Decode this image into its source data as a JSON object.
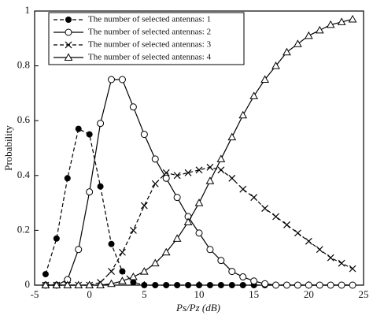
{
  "chart_data": {
    "type": "line",
    "xlabel": "Ps/Pz (dB)",
    "ylabel": "Probability",
    "x": [
      -4,
      -3,
      -2,
      -1,
      0,
      1,
      2,
      3,
      4,
      5,
      6,
      7,
      8,
      9,
      10,
      11,
      12,
      13,
      14,
      15,
      16,
      17,
      18,
      19,
      20,
      21,
      22,
      23,
      24
    ],
    "series": [
      {
        "name": "The number of selected antennas: 1",
        "color": "#000000",
        "marker": "filled-circle",
        "dash": true,
        "values": [
          0.04,
          0.17,
          0.39,
          0.57,
          0.55,
          0.36,
          0.15,
          0.05,
          0.01,
          0,
          0,
          0,
          0,
          0,
          0,
          0,
          0,
          0,
          0,
          0,
          0,
          0,
          0,
          0,
          0,
          0,
          0,
          0,
          0
        ]
      },
      {
        "name": "The number of selected antennas: 2",
        "color": "#000000",
        "marker": "open-circle",
        "dash": false,
        "values": [
          0,
          0,
          0.02,
          0.13,
          0.34,
          0.59,
          0.75,
          0.75,
          0.65,
          0.55,
          0.46,
          0.39,
          0.32,
          0.25,
          0.19,
          0.13,
          0.09,
          0.05,
          0.03,
          0.015,
          0.005,
          0,
          0,
          0,
          0,
          0,
          0,
          0,
          0
        ]
      },
      {
        "name": "The number of selected antennas: 3",
        "color": "#000000",
        "marker": "cross",
        "dash": true,
        "values": [
          0,
          0,
          0,
          0,
          0,
          0.01,
          0.05,
          0.12,
          0.2,
          0.29,
          0.37,
          0.41,
          0.4,
          0.41,
          0.42,
          0.43,
          0.42,
          0.39,
          0.35,
          0.32,
          0.28,
          0.25,
          0.22,
          0.19,
          0.16,
          0.13,
          0.1,
          0.08,
          0.06
        ]
      },
      {
        "name": "The number of selected antennas: 4",
        "color": "#000000",
        "marker": "triangle",
        "dash": false,
        "values": [
          0,
          0,
          0,
          0,
          0,
          0,
          0.005,
          0.015,
          0.03,
          0.05,
          0.08,
          0.12,
          0.17,
          0.23,
          0.3,
          0.38,
          0.46,
          0.54,
          0.62,
          0.69,
          0.75,
          0.8,
          0.85,
          0.88,
          0.91,
          0.93,
          0.95,
          0.96,
          0.97
        ]
      }
    ],
    "xlim": [
      -5,
      25
    ],
    "ylim": [
      0,
      1
    ],
    "xticks": [
      -5,
      0,
      5,
      10,
      15,
      20,
      25
    ],
    "yticks": [
      0,
      0.2,
      0.4,
      0.6,
      0.8,
      1
    ],
    "legend": "upper-left",
    "grid": false
  }
}
